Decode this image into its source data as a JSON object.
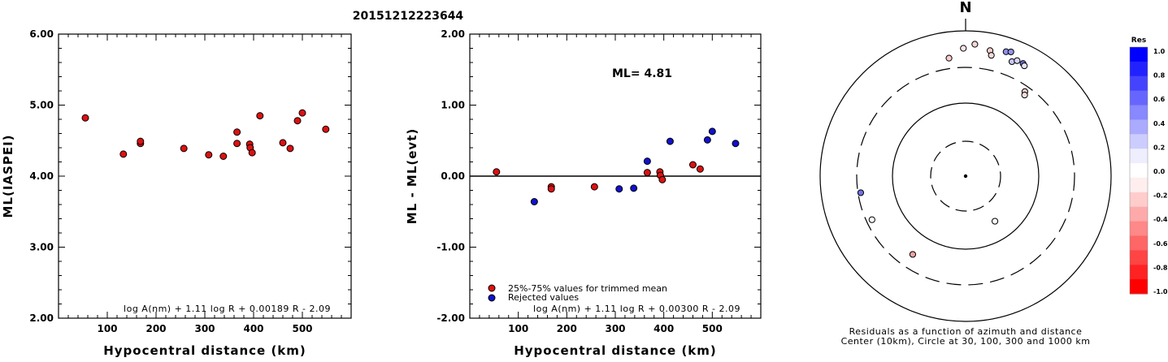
{
  "title": "20151212223644",
  "chart_data": [
    {
      "type": "scatter",
      "name": "ml-vs-distance",
      "xlabel": "Hypocentral distance (km)",
      "ylabel": "ML(IASPEI)",
      "xlim": [
        0,
        600
      ],
      "ylim": [
        2.0,
        6.0
      ],
      "xticks": [
        "100",
        "200",
        "300",
        "400",
        "500"
      ],
      "yticks": [
        "6.00",
        "5.00",
        "4.00",
        "3.00",
        "2.00"
      ],
      "formula": "log A(nm) + 1.11 log R + 0.00189 R - 2.09",
      "points": [
        {
          "x": 55,
          "y": 4.82,
          "c": "#dd1111"
        },
        {
          "x": 133,
          "y": 4.31,
          "c": "#dd1111"
        },
        {
          "x": 168,
          "y": 4.46,
          "c": "#dd1111"
        },
        {
          "x": 168,
          "y": 4.49,
          "c": "#dd1111"
        },
        {
          "x": 257,
          "y": 4.39,
          "c": "#dd1111"
        },
        {
          "x": 308,
          "y": 4.3,
          "c": "#dd1111"
        },
        {
          "x": 338,
          "y": 4.28,
          "c": "#dd1111"
        },
        {
          "x": 366,
          "y": 4.62,
          "c": "#dd1111"
        },
        {
          "x": 366,
          "y": 4.46,
          "c": "#dd1111"
        },
        {
          "x": 392,
          "y": 4.45,
          "c": "#dd1111"
        },
        {
          "x": 393,
          "y": 4.4,
          "c": "#dd1111"
        },
        {
          "x": 397,
          "y": 4.33,
          "c": "#dd1111"
        },
        {
          "x": 413,
          "y": 4.85,
          "c": "#dd1111"
        },
        {
          "x": 460,
          "y": 4.47,
          "c": "#dd1111"
        },
        {
          "x": 475,
          "y": 4.39,
          "c": "#dd1111"
        },
        {
          "x": 490,
          "y": 4.78,
          "c": "#dd1111"
        },
        {
          "x": 500,
          "y": 4.89,
          "c": "#dd1111"
        },
        {
          "x": 548,
          "y": 4.66,
          "c": "#dd1111"
        }
      ]
    },
    {
      "type": "scatter",
      "name": "ml-residual-vs-distance",
      "xlabel": "Hypocentral distance (km)",
      "ylabel": "ML - ML(evt)",
      "xlim": [
        0,
        600
      ],
      "ylim": [
        -2.0,
        2.0
      ],
      "xticks": [
        "100",
        "200",
        "300",
        "400",
        "500"
      ],
      "yticks": [
        "2.00",
        "1.00",
        "0.00",
        "-1.00",
        "-2.00"
      ],
      "ml_text": "ML= 4.81",
      "legend": [
        "25%-75% values for trimmed mean",
        "Rejected values"
      ],
      "formula": "log A(nm) + 1.11 log R + 0.00300 R - 2.09",
      "points": [
        {
          "x": 55,
          "y": 0.06,
          "c": "#dd1111"
        },
        {
          "x": 133,
          "y": -0.36,
          "c": "#1111cc"
        },
        {
          "x": 168,
          "y": -0.15,
          "c": "#dd1111"
        },
        {
          "x": 168,
          "y": -0.18,
          "c": "#dd1111"
        },
        {
          "x": 257,
          "y": -0.15,
          "c": "#dd1111"
        },
        {
          "x": 308,
          "y": -0.18,
          "c": "#1111cc"
        },
        {
          "x": 338,
          "y": -0.17,
          "c": "#1111cc"
        },
        {
          "x": 366,
          "y": 0.21,
          "c": "#1111cc"
        },
        {
          "x": 366,
          "y": 0.05,
          "c": "#dd1111"
        },
        {
          "x": 392,
          "y": 0.06,
          "c": "#dd1111"
        },
        {
          "x": 393,
          "y": 0.01,
          "c": "#dd1111"
        },
        {
          "x": 397,
          "y": -0.05,
          "c": "#dd1111"
        },
        {
          "x": 413,
          "y": 0.49,
          "c": "#1111cc"
        },
        {
          "x": 460,
          "y": 0.16,
          "c": "#dd1111"
        },
        {
          "x": 475,
          "y": 0.1,
          "c": "#dd1111"
        },
        {
          "x": 490,
          "y": 0.51,
          "c": "#1111cc"
        },
        {
          "x": 500,
          "y": 0.63,
          "c": "#1111cc"
        },
        {
          "x": 548,
          "y": 0.46,
          "c": "#1111cc"
        }
      ]
    },
    {
      "type": "polar-scatter",
      "name": "residual-azimuth-map",
      "north_label": "N",
      "caption": [
        "Residuals as a function of azimuth and distance",
        "Center (10km), Circle at 30, 100, 300 and 1000 km"
      ],
      "points": [
        {
          "az": 4,
          "r": 0.91,
          "c": "#f4d6d6"
        },
        {
          "az": 359,
          "r": 0.88,
          "c": "#fbe8e8"
        },
        {
          "az": 11,
          "r": 0.88,
          "c": "#f6d0d0"
        },
        {
          "az": 12,
          "r": 0.85,
          "c": "#f6d8d8"
        },
        {
          "az": 352,
          "r": 0.82,
          "c": "#f7cccc"
        },
        {
          "az": 18,
          "r": 0.9,
          "c": "#8f8fee"
        },
        {
          "az": 20,
          "r": 0.91,
          "c": "#9494ee"
        },
        {
          "az": 22,
          "r": 0.85,
          "c": "#c6c6f5"
        },
        {
          "az": 24,
          "r": 0.87,
          "c": "#d6d6f7"
        },
        {
          "az": 27,
          "r": 0.87,
          "c": "#6f6fe6"
        },
        {
          "az": 28,
          "r": 0.86,
          "c": "#e4e4f9"
        },
        {
          "az": 35,
          "r": 0.71,
          "c": "#f6cccc"
        },
        {
          "az": 36,
          "r": 0.69,
          "c": "#f8dcdc"
        },
        {
          "az": 147,
          "r": 0.37,
          "c": "#ffffff"
        },
        {
          "az": 214,
          "r": 0.65,
          "c": "#f3a3a3"
        },
        {
          "az": 245,
          "r": 0.71,
          "c": "#ffffff"
        },
        {
          "az": 261,
          "r": 0.73,
          "c": "#7272e6"
        }
      ]
    }
  ],
  "colorbar": {
    "title": "Res",
    "ticks": [
      "1.0",
      "0.8",
      "0.6",
      "0.4",
      "0.2",
      "0.0",
      "-0.2",
      "-0.4",
      "-0.6",
      "-0.8",
      "-1.0"
    ],
    "colors": [
      "#0000ff",
      "#2222ff",
      "#4444ff",
      "#6666ff",
      "#8888ff",
      "#aaaaff",
      "#ccccff",
      "#eeeeff",
      "#ffffff",
      "#ffeeee",
      "#ffcccc",
      "#ffaaaa",
      "#ff8888",
      "#ff6666",
      "#ff4444",
      "#ff2222",
      "#ff0000"
    ]
  }
}
